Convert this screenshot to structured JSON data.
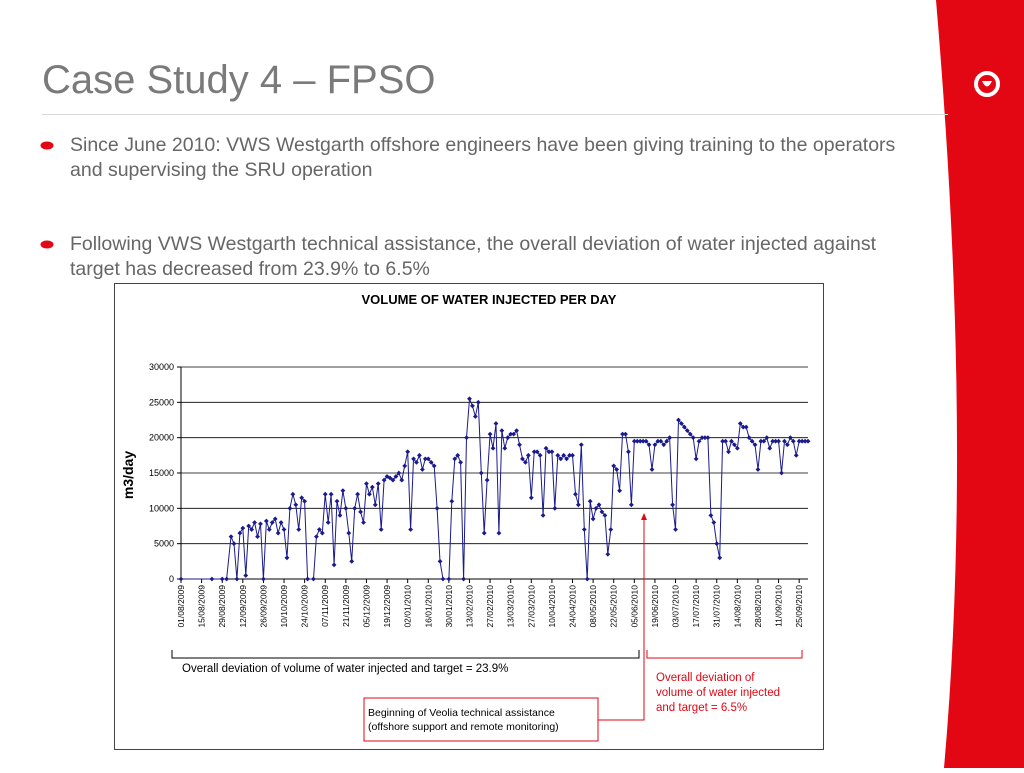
{
  "slide": {
    "title": "Case Study 4 – FPSO",
    "bullets": [
      "Since June 2010: VWS Westgarth offshore engineers have been giving training to the operators and supervising the SRU operation",
      "Following VWS Westgarth technical assistance, the overall deviation of water injected against target has decreased from 23.9% to 6.5%"
    ],
    "colors": {
      "accent": "#e30613",
      "title": "#7a7a7a",
      "text": "#666666",
      "series": "#1a1a8c"
    }
  },
  "annotations": {
    "before": "Overall deviation of volume of water injected and target = 23.9%",
    "after_lines": [
      "Overall deviation of",
      "volume of water injected",
      "and target = 6.5%"
    ],
    "start_lines": [
      "Beginning of Veolia technical assistance",
      "(offshore support and remote monitoring)"
    ]
  },
  "chart_data": {
    "type": "line",
    "title": "VOLUME OF WATER INJECTED PER DAY",
    "xlabel": "",
    "ylabel": "m3/day",
    "ylim": [
      0,
      30000
    ],
    "yticks": [
      0,
      5000,
      10000,
      15000,
      20000,
      25000,
      30000
    ],
    "xlim": [
      "2009-08-01",
      "2010-10-01"
    ],
    "xticks": [
      "01/08/2009",
      "15/08/2009",
      "29/08/2009",
      "12/09/2009",
      "26/09/2009",
      "10/10/2009",
      "24/10/2009",
      "07/11/2009",
      "21/11/2009",
      "05/12/2009",
      "19/12/2009",
      "02/01/2010",
      "16/01/2010",
      "30/01/2010",
      "13/02/2010",
      "27/02/2010",
      "13/03/2010",
      "27/03/2010",
      "10/04/2010",
      "24/04/2010",
      "08/05/2010",
      "22/05/2010",
      "05/06/2010",
      "19/06/2010",
      "03/07/2010",
      "17/07/2010",
      "31/07/2010",
      "14/08/2010",
      "28/08/2010",
      "11/09/2010",
      "25/09/2010"
    ],
    "grid": true,
    "legend": "none",
    "marker": "diamond",
    "series": [
      {
        "values": [
          [
            "2009-08-01",
            0
          ],
          [
            "2009-08-22",
            0
          ],
          [
            "2009-08-29",
            0
          ],
          [
            "2009-09-01",
            0
          ],
          [
            "2009-09-04",
            6000
          ],
          [
            "2009-09-06",
            5000
          ],
          [
            "2009-09-08",
            0
          ],
          [
            "2009-09-10",
            6500
          ],
          [
            "2009-09-12",
            7200
          ],
          [
            "2009-09-14",
            500
          ],
          [
            "2009-09-16",
            7500
          ],
          [
            "2009-09-18",
            7000
          ],
          [
            "2009-09-20",
            8000
          ],
          [
            "2009-09-22",
            6000
          ],
          [
            "2009-09-24",
            7800
          ],
          [
            "2009-09-26",
            0
          ],
          [
            "2009-09-28",
            8200
          ],
          [
            "2009-09-30",
            7000
          ],
          [
            "2009-10-02",
            8000
          ],
          [
            "2009-10-04",
            8500
          ],
          [
            "2009-10-06",
            6500
          ],
          [
            "2009-10-08",
            8000
          ],
          [
            "2009-10-10",
            7000
          ],
          [
            "2009-10-12",
            3000
          ],
          [
            "2009-10-14",
            10000
          ],
          [
            "2009-10-16",
            12000
          ],
          [
            "2009-10-18",
            10500
          ],
          [
            "2009-10-20",
            7000
          ],
          [
            "2009-10-22",
            11500
          ],
          [
            "2009-10-24",
            11000
          ],
          [
            "2009-10-26",
            0
          ],
          [
            "2009-10-30",
            0
          ],
          [
            "2009-11-01",
            6000
          ],
          [
            "2009-11-03",
            7000
          ],
          [
            "2009-11-05",
            6500
          ],
          [
            "2009-11-07",
            12000
          ],
          [
            "2009-11-09",
            8000
          ],
          [
            "2009-11-11",
            12000
          ],
          [
            "2009-11-13",
            2000
          ],
          [
            "2009-11-15",
            11000
          ],
          [
            "2009-11-17",
            9000
          ],
          [
            "2009-11-19",
            12500
          ],
          [
            "2009-11-21",
            10000
          ],
          [
            "2009-11-23",
            6500
          ],
          [
            "2009-11-25",
            2500
          ],
          [
            "2009-11-27",
            10000
          ],
          [
            "2009-11-29",
            12000
          ],
          [
            "2009-12-01",
            9500
          ],
          [
            "2009-12-03",
            8000
          ],
          [
            "2009-12-05",
            13500
          ],
          [
            "2009-12-07",
            12000
          ],
          [
            "2009-12-09",
            13000
          ],
          [
            "2009-12-11",
            10500
          ],
          [
            "2009-12-13",
            13500
          ],
          [
            "2009-12-15",
            7000
          ],
          [
            "2009-12-17",
            14000
          ],
          [
            "2009-12-19",
            14500
          ],
          [
            "2009-12-21",
            14300
          ],
          [
            "2009-12-23",
            14000
          ],
          [
            "2009-12-25",
            14500
          ],
          [
            "2009-12-27",
            15000
          ],
          [
            "2009-12-29",
            14000
          ],
          [
            "2009-12-31",
            16000
          ],
          [
            "2010-01-02",
            18000
          ],
          [
            "2010-01-04",
            7000
          ],
          [
            "2010-01-06",
            17000
          ],
          [
            "2010-01-08",
            16500
          ],
          [
            "2010-01-10",
            17500
          ],
          [
            "2010-01-12",
            15500
          ],
          [
            "2010-01-14",
            17000
          ],
          [
            "2010-01-16",
            17000
          ],
          [
            "2010-01-18",
            16500
          ],
          [
            "2010-01-20",
            16000
          ],
          [
            "2010-01-22",
            10000
          ],
          [
            "2010-01-24",
            2500
          ],
          [
            "2010-01-26",
            0
          ],
          [
            "2010-01-30",
            0
          ],
          [
            "2010-02-01",
            11000
          ],
          [
            "2010-02-03",
            17000
          ],
          [
            "2010-02-05",
            17500
          ],
          [
            "2010-02-07",
            16500
          ],
          [
            "2010-02-09",
            0
          ],
          [
            "2010-02-11",
            20000
          ],
          [
            "2010-02-13",
            25500
          ],
          [
            "2010-02-15",
            24500
          ],
          [
            "2010-02-17",
            23000
          ],
          [
            "2010-02-19",
            25000
          ],
          [
            "2010-02-21",
            15000
          ],
          [
            "2010-02-23",
            6500
          ],
          [
            "2010-02-25",
            14000
          ],
          [
            "2010-02-27",
            20500
          ],
          [
            "2010-03-01",
            18500
          ],
          [
            "2010-03-03",
            22000
          ],
          [
            "2010-03-05",
            6500
          ],
          [
            "2010-03-07",
            21000
          ],
          [
            "2010-03-09",
            18500
          ],
          [
            "2010-03-11",
            20000
          ],
          [
            "2010-03-13",
            20500
          ],
          [
            "2010-03-15",
            20500
          ],
          [
            "2010-03-17",
            21000
          ],
          [
            "2010-03-19",
            19000
          ],
          [
            "2010-03-21",
            17000
          ],
          [
            "2010-03-23",
            16500
          ],
          [
            "2010-03-25",
            17500
          ],
          [
            "2010-03-27",
            11500
          ],
          [
            "2010-03-29",
            18000
          ],
          [
            "2010-03-31",
            18000
          ],
          [
            "2010-04-02",
            17500
          ],
          [
            "2010-04-04",
            9000
          ],
          [
            "2010-04-06",
            18500
          ],
          [
            "2010-04-08",
            18000
          ],
          [
            "2010-04-10",
            18000
          ],
          [
            "2010-04-12",
            10000
          ],
          [
            "2010-04-14",
            17500
          ],
          [
            "2010-04-16",
            17000
          ],
          [
            "2010-04-18",
            17500
          ],
          [
            "2010-04-20",
            17000
          ],
          [
            "2010-04-22",
            17500
          ],
          [
            "2010-04-24",
            17500
          ],
          [
            "2010-04-26",
            12000
          ],
          [
            "2010-04-28",
            10500
          ],
          [
            "2010-04-30",
            19000
          ],
          [
            "2010-05-02",
            7000
          ],
          [
            "2010-05-04",
            0
          ],
          [
            "2010-05-06",
            11000
          ],
          [
            "2010-05-08",
            8500
          ],
          [
            "2010-05-10",
            10000
          ],
          [
            "2010-05-12",
            10500
          ],
          [
            "2010-05-14",
            9500
          ],
          [
            "2010-05-16",
            9000
          ],
          [
            "2010-05-18",
            3500
          ],
          [
            "2010-05-20",
            7000
          ],
          [
            "2010-05-22",
            16000
          ],
          [
            "2010-05-24",
            15500
          ],
          [
            "2010-05-26",
            12500
          ],
          [
            "2010-05-28",
            20500
          ],
          [
            "2010-05-30",
            20500
          ],
          [
            "2010-06-01",
            18000
          ],
          [
            "2010-06-03",
            10500
          ],
          [
            "2010-06-05",
            19500
          ],
          [
            "2010-06-07",
            19500
          ],
          [
            "2010-06-09",
            19500
          ],
          [
            "2010-06-11",
            19500
          ],
          [
            "2010-06-13",
            19500
          ],
          [
            "2010-06-15",
            19000
          ],
          [
            "2010-06-17",
            15500
          ],
          [
            "2010-06-19",
            19000
          ],
          [
            "2010-06-21",
            19500
          ],
          [
            "2010-06-23",
            19500
          ],
          [
            "2010-06-25",
            19000
          ],
          [
            "2010-06-27",
            19500
          ],
          [
            "2010-06-29",
            20000
          ],
          [
            "2010-07-01",
            10500
          ],
          [
            "2010-07-03",
            7000
          ],
          [
            "2010-07-05",
            22500
          ],
          [
            "2010-07-07",
            22000
          ],
          [
            "2010-07-09",
            21500
          ],
          [
            "2010-07-11",
            21000
          ],
          [
            "2010-07-13",
            20500
          ],
          [
            "2010-07-15",
            20000
          ],
          [
            "2010-07-17",
            17000
          ],
          [
            "2010-07-19",
            19500
          ],
          [
            "2010-07-21",
            20000
          ],
          [
            "2010-07-23",
            20000
          ],
          [
            "2010-07-25",
            20000
          ],
          [
            "2010-07-27",
            9000
          ],
          [
            "2010-07-29",
            8000
          ],
          [
            "2010-07-31",
            5000
          ],
          [
            "2010-08-02",
            3000
          ],
          [
            "2010-08-04",
            19500
          ],
          [
            "2010-08-06",
            19500
          ],
          [
            "2010-08-08",
            18000
          ],
          [
            "2010-08-10",
            19500
          ],
          [
            "2010-08-12",
            19000
          ],
          [
            "2010-08-14",
            18500
          ],
          [
            "2010-08-16",
            22000
          ],
          [
            "2010-08-18",
            21500
          ],
          [
            "2010-08-20",
            21500
          ],
          [
            "2010-08-22",
            20000
          ],
          [
            "2010-08-24",
            19500
          ],
          [
            "2010-08-26",
            19000
          ],
          [
            "2010-08-28",
            15500
          ],
          [
            "2010-08-30",
            19500
          ],
          [
            "2010-09-01",
            19500
          ],
          [
            "2010-09-03",
            20000
          ],
          [
            "2010-09-05",
            18500
          ],
          [
            "2010-09-07",
            19500
          ],
          [
            "2010-09-09",
            19500
          ],
          [
            "2010-09-11",
            19500
          ],
          [
            "2010-09-13",
            15000
          ],
          [
            "2010-09-15",
            19500
          ],
          [
            "2010-09-17",
            19000
          ],
          [
            "2010-09-19",
            20000
          ],
          [
            "2010-09-21",
            19500
          ],
          [
            "2010-09-23",
            17500
          ],
          [
            "2010-09-25",
            19500
          ],
          [
            "2010-09-27",
            19500
          ],
          [
            "2010-09-29",
            19500
          ],
          [
            "2010-10-01",
            19500
          ]
        ]
      }
    ]
  }
}
